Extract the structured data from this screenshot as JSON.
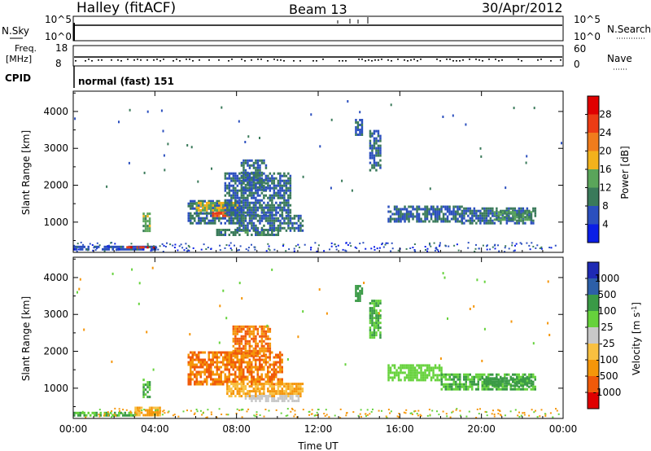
{
  "header": {
    "site": "Halley (fitACF)",
    "beam": "Beam 13",
    "date": "30/Apr/2012"
  },
  "params": {
    "nsky_label": "N.Sky",
    "nsky_ticks": [
      "10^5",
      "10^0"
    ],
    "nsearch_label": "N.Search",
    "nsearch_ticks": [
      "10^5",
      "10^0"
    ],
    "freq_label": "Freq.",
    "freq_unit": "[MHz]",
    "freq_ticks": [
      "18",
      "8"
    ],
    "nave_label": "Nave",
    "nave_ticks": [
      "60",
      "0"
    ],
    "cpid_label": "CPID",
    "cpid_value": "normal (fast) 151"
  },
  "colors": {
    "power": [
      "#0a1ee6",
      "#2b4fbe",
      "#3a7a5a",
      "#5aa55a",
      "#f2b21c",
      "#f07c1c",
      "#ec3c14",
      "#e00000"
    ],
    "velocity": [
      "#e00000",
      "#f05a0a",
      "#f5960a",
      "#f8c040",
      "#c8c8c8",
      "#66d23c",
      "#3a9a46",
      "#2d5fa8",
      "#1e2ab4"
    ]
  },
  "chart_data": [
    {
      "type": "heatmap",
      "name": "power",
      "xlabel": "",
      "ylabel": "Slant Range [km]",
      "x_ticks": [
        "00:00",
        "04:00",
        "08:00",
        "12:00",
        "16:00",
        "20:00",
        "00:00"
      ],
      "y_ticks": [
        "1000",
        "2000",
        "3000",
        "4000"
      ],
      "xlim_hours": [
        0,
        24
      ],
      "ylim_km": [
        180,
        4550
      ],
      "colorbar_label": "Power [dB]",
      "colorbar_ticks": [
        "4",
        "8",
        "12",
        "16",
        "20",
        "24",
        "28"
      ],
      "colorbar_range": [
        0,
        32
      ],
      "regions": [
        {
          "t0": 0.0,
          "t1": 4.0,
          "r0": 280,
          "r1": 360,
          "value": 6
        },
        {
          "t0": 2.6,
          "t1": 4.0,
          "r0": 290,
          "r1": 350,
          "value": 27
        },
        {
          "t0": 3.4,
          "t1": 3.7,
          "r0": 780,
          "r1": 1260,
          "value": 14
        },
        {
          "t0": 5.6,
          "t1": 8.2,
          "r0": 1000,
          "r1": 1600,
          "value": 8
        },
        {
          "t0": 6.8,
          "t1": 7.6,
          "r0": 1150,
          "r1": 1400,
          "value": 24
        },
        {
          "t0": 6.0,
          "t1": 8.0,
          "r0": 1350,
          "r1": 1550,
          "value": 16
        },
        {
          "t0": 7.4,
          "t1": 10.6,
          "r0": 1200,
          "r1": 2350,
          "value": 8
        },
        {
          "t0": 8.2,
          "t1": 9.4,
          "r0": 1900,
          "r1": 2700,
          "value": 8
        },
        {
          "t0": 8.0,
          "t1": 11.2,
          "r0": 800,
          "r1": 1200,
          "value": 8
        },
        {
          "t0": 7.0,
          "t1": 10.0,
          "r0": 650,
          "r1": 820,
          "value": 10
        },
        {
          "t0": 13.8,
          "t1": 14.1,
          "r0": 3400,
          "r1": 3800,
          "value": 8
        },
        {
          "t0": 14.5,
          "t1": 15.0,
          "r0": 2400,
          "r1": 3500,
          "value": 8
        },
        {
          "t0": 15.4,
          "t1": 19.0,
          "r0": 1050,
          "r1": 1450,
          "value": 8
        },
        {
          "t0": 19.0,
          "t1": 22.6,
          "r0": 950,
          "r1": 1400,
          "value": 8
        },
        {
          "t0": 20.6,
          "t1": 22.4,
          "r0": 1100,
          "r1": 1300,
          "value": 12
        }
      ]
    },
    {
      "type": "heatmap",
      "name": "velocity",
      "xlabel": "Time UT",
      "ylabel": "Slant Range [km]",
      "x_ticks": [
        "00:00",
        "04:00",
        "08:00",
        "12:00",
        "16:00",
        "20:00",
        "00:00"
      ],
      "y_ticks": [
        "1000",
        "2000",
        "3000",
        "4000"
      ],
      "xlim_hours": [
        0,
        24
      ],
      "ylim_km": [
        180,
        4550
      ],
      "colorbar_label": "Velocity [m s^-1]",
      "colorbar_ticks": [
        "1000",
        "500",
        "100",
        "25",
        "-25",
        "-100",
        "-500",
        "-1000"
      ],
      "regions": [
        {
          "t0": 0.0,
          "t1": 3.0,
          "r0": 280,
          "r1": 360,
          "value": 100
        },
        {
          "t0": 3.0,
          "t1": 4.2,
          "r0": 280,
          "r1": 500,
          "value": -100
        },
        {
          "t0": 3.4,
          "t1": 3.7,
          "r0": 780,
          "r1": 1260,
          "value": 100
        },
        {
          "t0": 5.6,
          "t1": 10.2,
          "r0": 1100,
          "r1": 2000,
          "value": -500
        },
        {
          "t0": 7.8,
          "t1": 9.6,
          "r0": 1900,
          "r1": 2700,
          "value": -500
        },
        {
          "t0": 7.5,
          "t1": 11.2,
          "r0": 800,
          "r1": 1150,
          "value": -100
        },
        {
          "t0": 8.4,
          "t1": 11.0,
          "r0": 650,
          "r1": 820,
          "value": 0
        },
        {
          "t0": 13.8,
          "t1": 14.1,
          "r0": 3400,
          "r1": 3800,
          "value": 300
        },
        {
          "t0": 14.5,
          "t1": 15.0,
          "r0": 2400,
          "r1": 3400,
          "value": 100
        },
        {
          "t0": 15.4,
          "t1": 18.0,
          "r0": 1250,
          "r1": 1650,
          "value": 50
        },
        {
          "t0": 18.0,
          "t1": 22.6,
          "r0": 950,
          "r1": 1400,
          "value": 100
        },
        {
          "t0": 20.0,
          "t1": 22.4,
          "r0": 1050,
          "r1": 1300,
          "value": 300
        }
      ]
    }
  ]
}
